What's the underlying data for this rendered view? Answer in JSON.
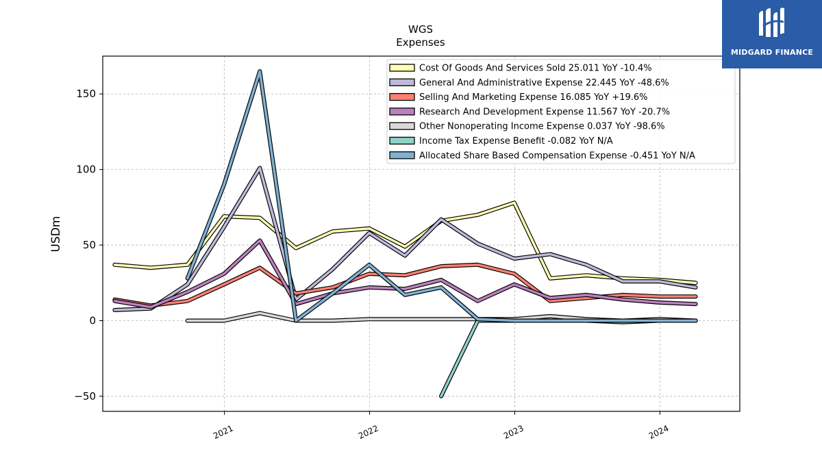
{
  "brand": {
    "name": "MIDGARD FINANCE",
    "bg_color": "#2a5ca8"
  },
  "chart_data": {
    "type": "line",
    "title": "WGS",
    "subtitle": "Expenses",
    "xlabel": "",
    "ylabel": "USDm",
    "x_range": [
      "2020-03-01",
      "2024-07-20"
    ],
    "ylim": [
      -60,
      175
    ],
    "yticks": [
      -50,
      0,
      50,
      100,
      150
    ],
    "ytick_labels": [
      "−50",
      "0",
      "50",
      "100",
      "150"
    ],
    "xticks": [
      "2021-01-01",
      "2022-01-01",
      "2023-01-01",
      "2024-01-01"
    ],
    "xtick_labels": [
      "2021",
      "2022",
      "2023",
      "2024"
    ],
    "grid": true,
    "legend_position": "top-right",
    "series": [
      {
        "name": "Cost Of Goods And Services Sold",
        "legend": "Cost Of Goods And Services Sold  25.011 YoY -10.4%",
        "color": "#ffffb3",
        "x": [
          "2020-03-31",
          "2020-06-30",
          "2020-09-30",
          "2020-12-31",
          "2021-03-31",
          "2021-06-30",
          "2021-09-30",
          "2021-12-31",
          "2022-03-31",
          "2022-06-30",
          "2022-09-30",
          "2022-12-31",
          "2023-03-31",
          "2023-06-30",
          "2023-09-30",
          "2023-12-31",
          "2024-03-31"
        ],
        "y": [
          37,
          35,
          37,
          69,
          68,
          48,
          59,
          61,
          49,
          66,
          70,
          78,
          28,
          30,
          28,
          27,
          25
        ]
      },
      {
        "name": "General And Administrative Expense",
        "legend": "General And Administrative Expense  22.445 YoY -48.6%",
        "color": "#bebada",
        "x": [
          "2020-03-31",
          "2020-06-30",
          "2020-09-30",
          "2020-12-31",
          "2021-03-31",
          "2021-06-30",
          "2021-09-30",
          "2021-12-31",
          "2022-03-31",
          "2022-06-30",
          "2022-09-30",
          "2022-12-31",
          "2023-03-31",
          "2023-06-30",
          "2023-09-30",
          "2023-12-31",
          "2024-03-31"
        ],
        "y": [
          7,
          8,
          24,
          62,
          101,
          14,
          34,
          58,
          43,
          67,
          51,
          41,
          44,
          37,
          26,
          26,
          22
        ]
      },
      {
        "name": "Selling And Marketing Expense",
        "legend": "Selling And Marketing Expense  16.085 YoY +19.6%",
        "color": "#fb8072",
        "x": [
          "2020-03-31",
          "2020-06-30",
          "2020-09-30",
          "2020-12-31",
          "2021-03-31",
          "2021-06-30",
          "2021-09-30",
          "2021-12-31",
          "2022-03-31",
          "2022-06-30",
          "2022-09-30",
          "2022-12-31",
          "2023-03-31",
          "2023-06-30",
          "2023-09-30",
          "2023-12-31",
          "2024-03-31"
        ],
        "y": [
          14,
          10,
          13,
          24,
          35,
          18,
          22,
          31,
          30,
          36,
          37,
          31,
          13,
          15,
          17,
          16,
          16
        ]
      },
      {
        "name": "Research And Development Expense",
        "legend": "Research And Development Expense  11.567 YoY -20.7%",
        "color": "#bc80bd",
        "x": [
          "2020-03-31",
          "2020-06-30",
          "2020-09-30",
          "2020-12-31",
          "2021-03-31",
          "2021-06-30",
          "2021-09-30",
          "2021-12-31",
          "2022-03-31",
          "2022-06-30",
          "2022-09-30",
          "2022-12-31",
          "2023-03-31",
          "2023-06-30",
          "2023-09-30",
          "2023-12-31",
          "2024-03-31"
        ],
        "y": [
          13,
          9,
          19,
          31,
          53,
          11,
          18,
          22,
          21,
          27,
          13,
          24,
          15,
          17,
          14,
          12,
          11
        ]
      },
      {
        "name": "Other Nonoperating Income Expense",
        "legend": "Other Nonoperating Income Expense  0.037 YoY -98.6%",
        "color": "#d9d9d9",
        "x": [
          "2020-09-30",
          "2020-12-31",
          "2021-03-31",
          "2021-06-30",
          "2021-09-30",
          "2021-12-31",
          "2022-03-31",
          "2022-06-30",
          "2022-09-30",
          "2022-12-31",
          "2023-03-31",
          "2023-06-30",
          "2023-09-30",
          "2023-12-31",
          "2024-03-31"
        ],
        "y": [
          0,
          0,
          5,
          0,
          0,
          1,
          1,
          1,
          1,
          1,
          3,
          1,
          0,
          1,
          0
        ]
      },
      {
        "name": "Income Tax Expense Benefit",
        "legend": "Income Tax Expense Benefit  -0.082 YoY N/A",
        "color": "#8dd3c7",
        "x": [
          "2022-06-30",
          "2022-09-30",
          "2022-12-31",
          "2023-03-31",
          "2023-06-30",
          "2023-09-30",
          "2023-12-31",
          "2024-03-31"
        ],
        "y": [
          -50,
          0,
          0,
          0,
          0,
          -1,
          0,
          0
        ]
      },
      {
        "name": "Allocated Share Based Compensation Expense",
        "legend": "Allocated Share Based Compensation Expense  -0.451 YoY N/A",
        "color": "#80b1d3",
        "x": [
          "2020-09-30",
          "2020-12-31",
          "2021-03-31",
          "2021-06-30",
          "2021-09-30",
          "2021-12-31",
          "2022-03-31",
          "2022-06-30",
          "2022-09-30",
          "2022-12-31",
          "2023-03-31",
          "2023-06-30",
          "2023-09-30",
          "2023-12-31",
          "2024-03-31"
        ],
        "y": [
          28,
          90,
          165,
          0,
          18,
          37,
          17,
          22,
          1,
          0,
          0,
          0,
          0,
          0,
          0
        ]
      }
    ]
  }
}
